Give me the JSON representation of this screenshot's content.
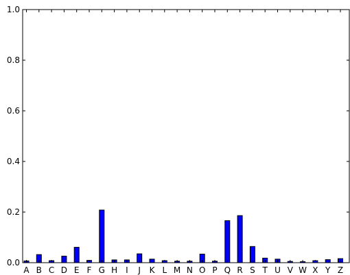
{
  "chart_data": {
    "type": "bar",
    "categories": [
      "A",
      "B",
      "C",
      "D",
      "E",
      "F",
      "G",
      "H",
      "I",
      "J",
      "K",
      "L",
      "M",
      "N",
      "O",
      "P",
      "Q",
      "R",
      "S",
      "T",
      "U",
      "V",
      "W",
      "X",
      "Y",
      "Z"
    ],
    "values": [
      0.007,
      0.032,
      0.008,
      0.026,
      0.061,
      0.009,
      0.208,
      0.011,
      0.011,
      0.035,
      0.014,
      0.008,
      0.006,
      0.006,
      0.034,
      0.006,
      0.166,
      0.186,
      0.064,
      0.018,
      0.014,
      0.005,
      0.004,
      0.008,
      0.012,
      0.016
    ],
    "title": "",
    "xlabel": "",
    "ylabel": "",
    "ylim": [
      0,
      1.0
    ],
    "yticks": [
      0,
      0.2,
      0.4,
      0.6,
      0.8,
      1.0
    ],
    "ytick_labels": [
      "0.0",
      "0.2",
      "0.4",
      "0.6",
      "0.8",
      "1.0"
    ],
    "bar_color": "#0000ff",
    "edge_color": "#000000",
    "grid": false,
    "legend": "none"
  }
}
